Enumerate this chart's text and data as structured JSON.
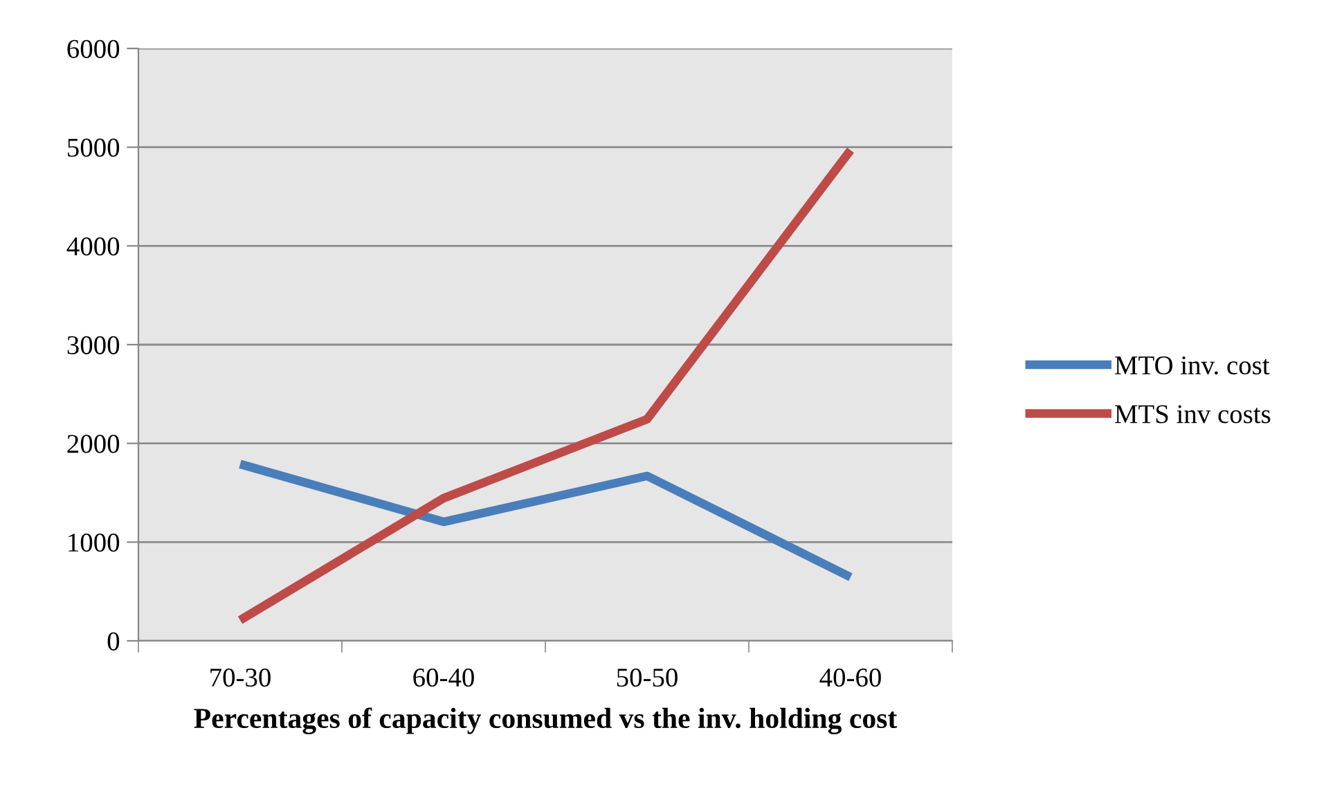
{
  "chart_data": {
    "type": "line",
    "xlabel": "Percentages of capacity consumed vs the inv. holding cost",
    "categories": [
      "70-30",
      "60-40",
      "50-50",
      "40-60"
    ],
    "series": [
      {
        "name": "MTO inv. cost",
        "color": "#4a7ebb",
        "values": [
          1790,
          1205,
          1670,
          645
        ]
      },
      {
        "name": "MTS inv costs",
        "color": "#be4b48",
        "values": [
          210,
          1445,
          2245,
          4970
        ]
      }
    ],
    "ylim": [
      0,
      6000
    ],
    "yticks": [
      0,
      1000,
      2000,
      3000,
      4000,
      5000,
      6000
    ],
    "grid": "y",
    "legend": "right",
    "marker": "none",
    "line_style": "solid"
  }
}
